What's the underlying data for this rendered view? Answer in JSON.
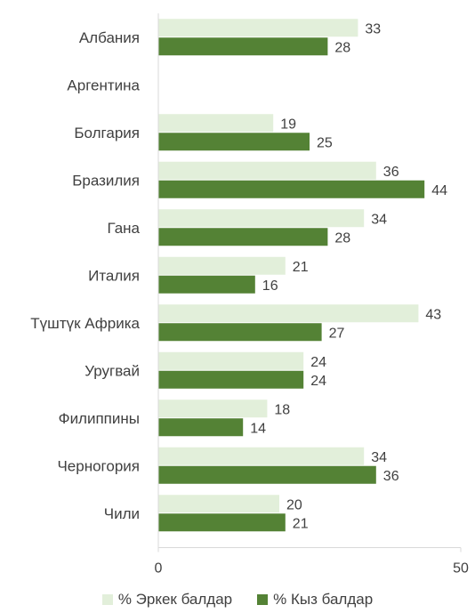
{
  "chart_data": {
    "type": "bar",
    "orientation": "horizontal",
    "categories": [
      "Албания",
      "Аргентина",
      "Болгария",
      "Бразилия",
      "Гана",
      "Италия",
      "Түштүк Африка",
      "Уругвай",
      "Филиппины",
      "Черногория",
      "Чили"
    ],
    "series": [
      {
        "name": "% Эркек балдар",
        "color": "#e2efda",
        "values": [
          33,
          null,
          19,
          36,
          34,
          21,
          43,
          24,
          18,
          34,
          20
        ]
      },
      {
        "name": "% Кыз балдар",
        "color": "#548235",
        "values": [
          28,
          null,
          25,
          44,
          28,
          16,
          27,
          24,
          14,
          36,
          21
        ]
      }
    ],
    "xlim": [
      0,
      50
    ],
    "xticks": [
      "0",
      "50"
    ],
    "grid": false,
    "legend_position": "bottom"
  }
}
